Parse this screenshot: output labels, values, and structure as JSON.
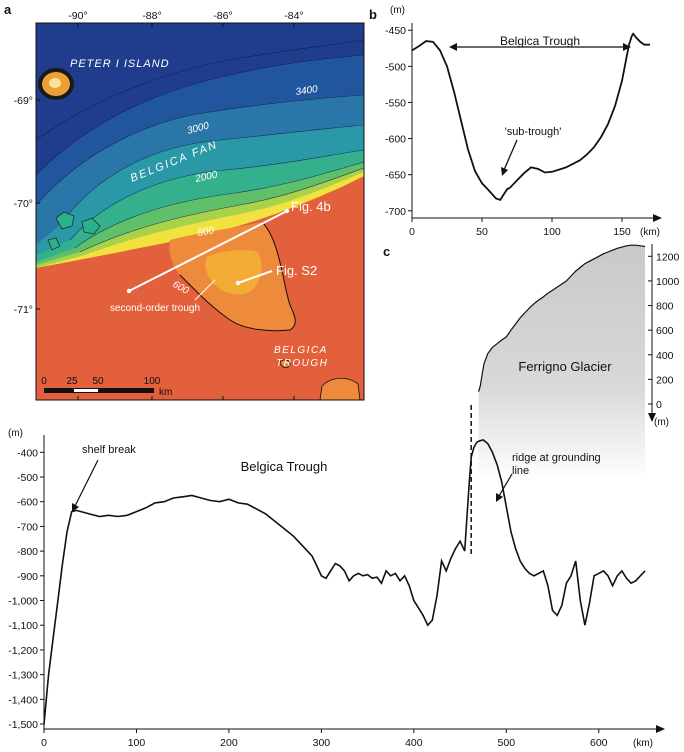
{
  "panel_labels": {
    "a": "a",
    "b": "b",
    "c": "c"
  },
  "map": {
    "lon_ticks": [
      "-90°",
      "-88°",
      "-86°",
      "-84°"
    ],
    "lat_ticks": [
      "-69°",
      "-70°",
      "-71°"
    ],
    "labels": {
      "peter_island": "PETER I ISLAND",
      "belgica_fan": "BELGICA FAN",
      "belgica": "BELGICA",
      "trough": "TROUGH",
      "second_order": "second-order trough",
      "fig4b": "Fig. 4b",
      "figs2": "Fig. S2"
    },
    "contours": {
      "c3400": "3400",
      "c3000": "3000",
      "c2000": "2000",
      "c800": "800",
      "c600": "600"
    },
    "scalebar": {
      "t0": "0",
      "t25": "25",
      "t50": "50",
      "t100": "100",
      "unit": "km"
    },
    "colors": {
      "deep": "#1f3d8c",
      "mid": "#2aa89a",
      "shallow": "#f2e240",
      "shelf": "#e2603c",
      "trough": "#f0a535"
    }
  },
  "chart_data": [
    {
      "id": "b",
      "type": "line",
      "ylabel": "(m)",
      "xlabel": "(km)",
      "xlim": [
        0,
        170
      ],
      "ylim": [
        -710,
        -440
      ],
      "xticks": [
        0,
        50,
        100,
        150
      ],
      "yticks": [
        -450,
        -500,
        -550,
        -600,
        -650,
        -700
      ],
      "annotations": {
        "trough": "Belgica Trough",
        "sub_trough": "'sub-trough'"
      },
      "x": [
        0,
        5,
        10,
        15,
        20,
        25,
        30,
        35,
        40,
        45,
        50,
        55,
        60,
        63,
        66,
        68,
        70,
        75,
        80,
        85,
        90,
        95,
        100,
        105,
        110,
        115,
        120,
        125,
        130,
        135,
        140,
        145,
        150,
        153,
        155,
        157,
        158,
        160,
        163,
        166,
        170
      ],
      "y": [
        -478,
        -472,
        -465,
        -466,
        -478,
        -500,
        -535,
        -575,
        -615,
        -645,
        -662,
        -672,
        -683,
        -685,
        -676,
        -670,
        -668,
        -658,
        -648,
        -640,
        -642,
        -647,
        -646,
        -643,
        -640,
        -635,
        -630,
        -622,
        -612,
        -598,
        -580,
        -555,
        -520,
        -490,
        -470,
        -458,
        -455,
        -460,
        -466,
        -470,
        -470
      ]
    },
    {
      "id": "c",
      "type": "line",
      "ylabel": "(m)",
      "xlabel": "(km)",
      "xlim": [
        0,
        650
      ],
      "ylim": [
        -1520,
        -330
      ],
      "xticks": [
        0,
        100,
        200,
        300,
        400,
        500,
        600
      ],
      "yticks": [
        -400,
        -500,
        -600,
        -700,
        -800,
        -900,
        -1000,
        -1100,
        -1200,
        -1300,
        -1400,
        -1500
      ],
      "ytick_labels": [
        "-400",
        "-500",
        "-600",
        "-700",
        "-800",
        "-900",
        "-1,000",
        "-1,100",
        "-1,200",
        "-1,300",
        "-1,400",
        "-1,500"
      ],
      "annotations": {
        "shelf_break": "shelf break",
        "trough": "Belgica Trough",
        "ridge": "ridge at grounding line"
      },
      "x": [
        0,
        5,
        10,
        15,
        20,
        25,
        30,
        35,
        40,
        50,
        60,
        70,
        80,
        90,
        100,
        110,
        120,
        130,
        140,
        150,
        160,
        170,
        180,
        190,
        200,
        210,
        220,
        230,
        240,
        250,
        260,
        270,
        280,
        290,
        295,
        300,
        305,
        310,
        315,
        320,
        325,
        330,
        335,
        340,
        345,
        350,
        355,
        360,
        365,
        370,
        375,
        380,
        385,
        390,
        395,
        400,
        405,
        410,
        415,
        420,
        425,
        430,
        435,
        440,
        445,
        450,
        455,
        460,
        462,
        465,
        468,
        470,
        475,
        480,
        485,
        490,
        495,
        500,
        505,
        510,
        515,
        520,
        525,
        530,
        540,
        545,
        550,
        555,
        560,
        565,
        570,
        575,
        580,
        585,
        590,
        595,
        600,
        605,
        610,
        615,
        620,
        625,
        630,
        635,
        640,
        645,
        650
      ],
      "y": [
        -1500,
        -1300,
        -1150,
        -1000,
        -850,
        -720,
        -640,
        -635,
        -640,
        -650,
        -660,
        -655,
        -660,
        -655,
        -640,
        -625,
        -605,
        -600,
        -585,
        -580,
        -575,
        -585,
        -595,
        -600,
        -590,
        -605,
        -610,
        -630,
        -650,
        -680,
        -710,
        -740,
        -780,
        -820,
        -860,
        -900,
        -910,
        -880,
        -850,
        -860,
        -880,
        -920,
        -900,
        -890,
        -900,
        -895,
        -910,
        -905,
        -930,
        -880,
        -900,
        -890,
        -920,
        -900,
        -940,
        -1000,
        -1030,
        -1060,
        -1100,
        -1080,
        -980,
        -840,
        -880,
        -830,
        -790,
        -760,
        -800,
        -520,
        -420,
        -380,
        -360,
        -355,
        -350,
        -365,
        -400,
        -450,
        -520,
        -620,
        -720,
        -790,
        -840,
        -870,
        -890,
        -900,
        -880,
        -940,
        -1040,
        -1060,
        -1020,
        -930,
        -900,
        -840,
        -1000,
        -1100,
        -1010,
        -900,
        -890,
        -880,
        -900,
        -940,
        -900,
        -880,
        -910,
        -930,
        -920,
        -900,
        -880
      ]
    },
    {
      "id": "c-glacier",
      "type": "area",
      "label": "Ferrigno Glacier",
      "unit": "(m)",
      "yticks": [
        0,
        200,
        400,
        600,
        800,
        1000,
        1200
      ],
      "ylim": [
        0,
        1300
      ],
      "x": [
        470,
        472,
        474,
        476,
        480,
        485,
        490,
        495,
        500,
        505,
        510,
        515,
        520,
        525,
        530,
        535,
        540,
        545,
        550,
        555,
        560,
        565,
        570,
        575,
        580,
        585,
        590,
        595,
        600,
        605,
        610,
        615,
        620,
        625,
        630,
        635,
        640,
        645,
        650
      ],
      "y": [
        100,
        150,
        250,
        330,
        410,
        460,
        490,
        520,
        545,
        600,
        650,
        700,
        740,
        780,
        815,
        845,
        870,
        900,
        925,
        950,
        975,
        1000,
        1040,
        1080,
        1110,
        1140,
        1160,
        1180,
        1200,
        1220,
        1235,
        1250,
        1265,
        1275,
        1285,
        1290,
        1290,
        1285,
        1280
      ]
    }
  ]
}
